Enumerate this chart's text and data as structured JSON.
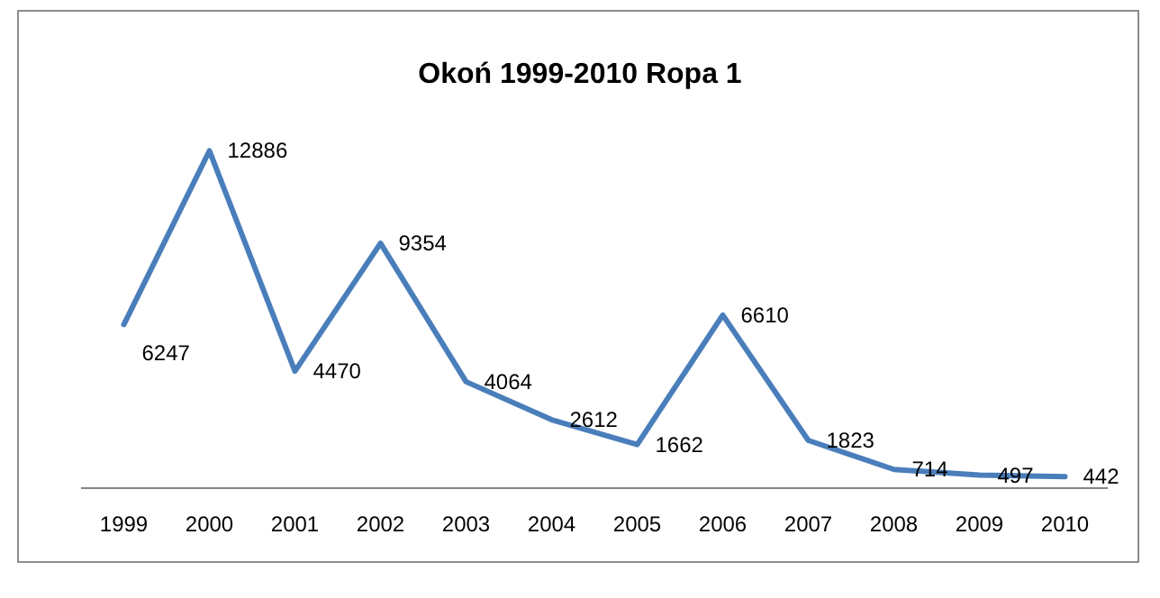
{
  "chart_data": {
    "type": "line",
    "title": "Okoń 1999-2010 Ropa 1",
    "categories": [
      "1999",
      "2000",
      "2001",
      "2002",
      "2003",
      "2004",
      "2005",
      "2006",
      "2007",
      "2008",
      "2009",
      "2010"
    ],
    "series": [
      {
        "color": "#4a7ebb",
        "values": [
          6247,
          12886,
          4470,
          9354,
          4064,
          2612,
          1662,
          6610,
          1823,
          714,
          497,
          442
        ]
      }
    ],
    "data_labels": true,
    "marker": "none",
    "line_style": "solid"
  }
}
